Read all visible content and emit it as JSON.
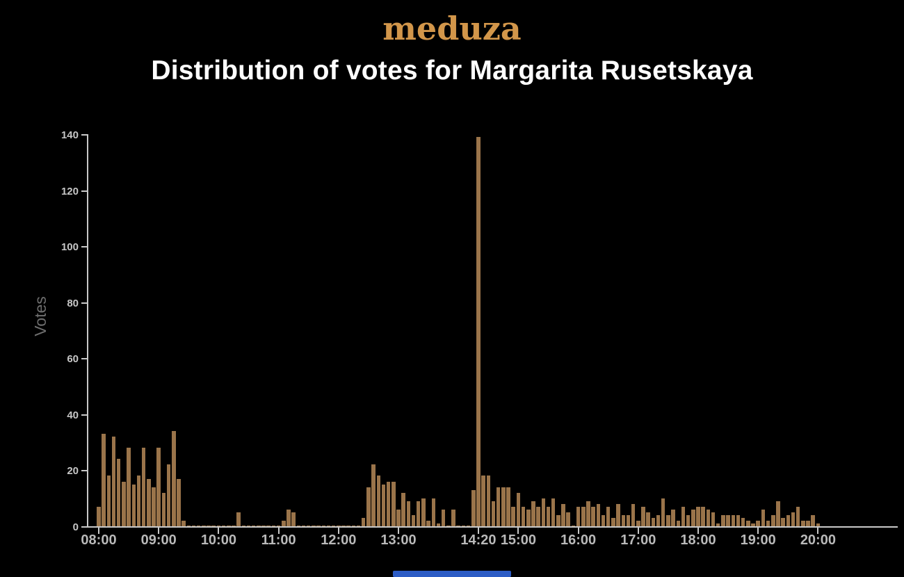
{
  "header": {
    "logo_text": "meduza",
    "logo_color": "#d2964a",
    "title": "Distribution of votes for Margarita Rusetskaya",
    "title_color": "#ffffff"
  },
  "footer": {
    "accent_bar_color": "#2c5cc5"
  },
  "chart_data": {
    "type": "bar",
    "title": "Distribution of votes for Margarita Rusetskaya",
    "xlabel": "",
    "ylabel": "Votes",
    "ylim": [
      0,
      140
    ],
    "bar_color": "#9a744a",
    "grid": false,
    "legend": "none",
    "bin_minutes": 5,
    "yticks": [
      0,
      20,
      40,
      60,
      80,
      100,
      120,
      140
    ],
    "xticks": [
      {
        "label": "08:00",
        "minutes": 0
      },
      {
        "label": "09:00",
        "minutes": 60
      },
      {
        "label": "10:00",
        "minutes": 120
      },
      {
        "label": "11:00",
        "minutes": 180
      },
      {
        "label": "12:00",
        "minutes": 240
      },
      {
        "label": "13:00",
        "minutes": 300
      },
      {
        "label": "14:20",
        "minutes": 380
      },
      {
        "label": "15:00",
        "minutes": 420
      },
      {
        "label": "16:00",
        "minutes": 480
      },
      {
        "label": "17:00",
        "minutes": 540
      },
      {
        "label": "18:00",
        "minutes": 600
      },
      {
        "label": "19:00",
        "minutes": 660
      },
      {
        "label": "20:00",
        "minutes": 720
      }
    ],
    "times": [
      "08:00",
      "08:05",
      "08:10",
      "08:15",
      "08:20",
      "08:25",
      "08:30",
      "08:35",
      "08:40",
      "08:45",
      "08:50",
      "08:55",
      "09:00",
      "09:05",
      "09:10",
      "09:15",
      "09:20",
      "09:25",
      "09:30",
      "09:35",
      "09:40",
      "09:45",
      "09:50",
      "09:55",
      "10:00",
      "10:05",
      "10:10",
      "10:15",
      "10:20",
      "10:25",
      "10:30",
      "10:35",
      "10:40",
      "10:45",
      "10:50",
      "10:55",
      "11:00",
      "11:05",
      "11:10",
      "11:15",
      "11:20",
      "11:25",
      "11:30",
      "11:35",
      "11:40",
      "11:45",
      "11:50",
      "11:55",
      "12:00",
      "12:05",
      "12:10",
      "12:15",
      "12:20",
      "12:25",
      "12:30",
      "12:35",
      "12:40",
      "12:45",
      "12:50",
      "12:55",
      "13:00",
      "13:05",
      "13:10",
      "13:15",
      "13:20",
      "13:25",
      "13:30",
      "13:35",
      "13:40",
      "13:45",
      "13:50",
      "13:55",
      "14:00",
      "14:05",
      "14:10",
      "14:15",
      "14:20",
      "14:25",
      "14:30",
      "14:35",
      "14:40",
      "14:45",
      "14:50",
      "14:55",
      "15:00",
      "15:05",
      "15:10",
      "15:15",
      "15:20",
      "15:25",
      "15:30",
      "15:35",
      "15:40",
      "15:45",
      "15:50",
      "15:55",
      "16:00",
      "16:05",
      "16:10",
      "16:15",
      "16:20",
      "16:25",
      "16:30",
      "16:35",
      "16:40",
      "16:45",
      "16:50",
      "16:55",
      "17:00",
      "17:05",
      "17:10",
      "17:15",
      "17:20",
      "17:25",
      "17:30",
      "17:35",
      "17:40",
      "17:45",
      "17:50",
      "17:55",
      "18:00",
      "18:05",
      "18:10",
      "18:15",
      "18:20",
      "18:25",
      "18:30",
      "18:35",
      "18:40",
      "18:45",
      "18:50",
      "18:55",
      "19:00",
      "19:05",
      "19:10",
      "19:15",
      "19:20",
      "19:25",
      "19:30",
      "19:35",
      "19:40",
      "19:45",
      "19:50",
      "19:55",
      "20:00"
    ],
    "votes": [
      7,
      33,
      18,
      32,
      24,
      16,
      28,
      15,
      18,
      28,
      17,
      14,
      28,
      12,
      22,
      34,
      17,
      2,
      0,
      0,
      0,
      0,
      0,
      0,
      0,
      0,
      0,
      0,
      5,
      0,
      0,
      0,
      0,
      0,
      0,
      0,
      0,
      2,
      6,
      5,
      0,
      0,
      0,
      0,
      0,
      0,
      0,
      0,
      0,
      0,
      0,
      0,
      0,
      3,
      14,
      22,
      18,
      15,
      16,
      16,
      6,
      12,
      9,
      4,
      9,
      10,
      2,
      10,
      1,
      6,
      0,
      6,
      0,
      0,
      0,
      13,
      139,
      18,
      18,
      9,
      14,
      14,
      14,
      7,
      12,
      7,
      6,
      9,
      7,
      10,
      7,
      10,
      4,
      8,
      5,
      0,
      7,
      7,
      9,
      7,
      8,
      4,
      7,
      3,
      8,
      4,
      4,
      8,
      2,
      7,
      5,
      3,
      4,
      10,
      4,
      6,
      2,
      7,
      4,
      6,
      7,
      7,
      6,
      5,
      1,
      4,
      4,
      4,
      4,
      3,
      2,
      1,
      2,
      6,
      2,
      4,
      9,
      3,
      4,
      5,
      7,
      2,
      2,
      4,
      1
    ]
  }
}
